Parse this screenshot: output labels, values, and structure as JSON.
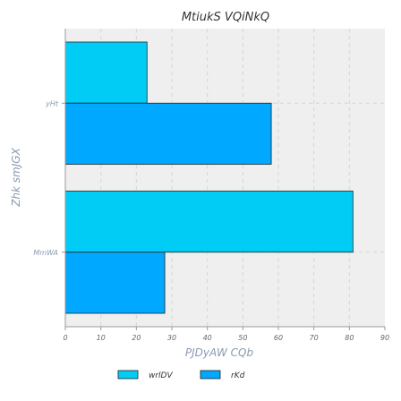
{
  "chart_data": {
    "type": "bar",
    "orientation": "horizontal",
    "title": "MtiukS VQiNkQ",
    "xlabel": "PJDyAW  CQb",
    "ylabel": "Zhk smJGX",
    "categories": [
      "yHt",
      "MmWA"
    ],
    "series": [
      {
        "name": "wrlDV",
        "values": [
          23,
          81
        ],
        "color": "#00ccf5"
      },
      {
        "name": "rKd",
        "values": [
          58,
          28
        ],
        "color": "#00a8ff"
      }
    ],
    "xlim": [
      0,
      90
    ],
    "xticks": [
      "0",
      "10",
      "20",
      "30",
      "40",
      "50",
      "60",
      "70",
      "80",
      "90"
    ],
    "grid": true,
    "legend_position": "bottom"
  }
}
